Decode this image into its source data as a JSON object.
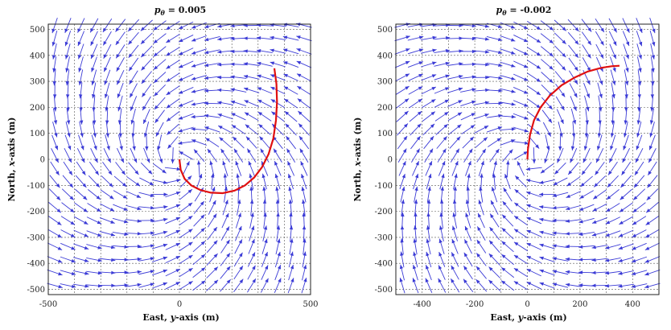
{
  "chart_data": [
    {
      "type": "quiver",
      "title_symbol": "p",
      "title_subscript": "θ",
      "title_value": " = 0.005",
      "xlabel_prefix": "East, ",
      "xlabel_var": "y",
      "xlabel_suffix": "-axis (m)",
      "ylabel_prefix": "North, ",
      "ylabel_var": "x",
      "ylabel_suffix": "-axis (m)",
      "xlim": [
        -500,
        500
      ],
      "ylim": [
        -520,
        520
      ],
      "xticks": [
        -500,
        0,
        500
      ],
      "xtick_labels": [
        "-500",
        "0",
        "500"
      ],
      "xgrid": [
        -500,
        -400,
        -300,
        -200,
        -100,
        0,
        100,
        200,
        300,
        400,
        500
      ],
      "yticks": [
        -500,
        -400,
        -300,
        -200,
        -100,
        0,
        100,
        200,
        300,
        400,
        500
      ],
      "ytick_labels": [
        "-500",
        "-400",
        "-300",
        "-200",
        "-100",
        "0",
        "100",
        "200",
        "300",
        "400",
        "500"
      ],
      "field": {
        "spin": 1,
        "inflow": 0.55,
        "grid_step": 50
      },
      "trajectory": {
        "x": [
          0,
          5,
          20,
          45,
          80,
          120,
          165,
          210,
          250,
          285,
          315,
          340,
          358,
          368,
          372,
          370,
          362
        ],
        "y": [
          0,
          -40,
          -75,
          -100,
          -118,
          -128,
          -130,
          -120,
          -100,
          -70,
          -30,
          20,
          80,
          150,
          220,
          290,
          350
        ]
      },
      "series_colors": {
        "field": "#3b3bd6",
        "trajectory": "#e01010"
      }
    },
    {
      "type": "quiver",
      "title_symbol": "p",
      "title_subscript": "θ",
      "title_value": " = -0.002",
      "xlabel_prefix": "East, ",
      "xlabel_var": "y",
      "xlabel_suffix": "-axis (m)",
      "ylabel_prefix": "North, ",
      "ylabel_var": "x",
      "ylabel_suffix": "-axis (m)",
      "xlim": [
        -500,
        500
      ],
      "ylim": [
        -520,
        520
      ],
      "xticks": [
        -400,
        -200,
        0,
        200,
        400
      ],
      "xtick_labels": [
        "-400",
        "-200",
        "0",
        "200",
        "400"
      ],
      "xgrid": [
        -400,
        -300,
        -200,
        -100,
        0,
        100,
        200,
        300,
        400
      ],
      "yticks": [
        -500,
        -400,
        -300,
        -200,
        -100,
        0,
        100,
        200,
        300,
        400,
        500
      ],
      "ytick_labels": [
        "-500",
        "-400",
        "-300",
        "-200",
        "-100",
        "0",
        "100",
        "200",
        "300",
        "400",
        "500"
      ],
      "field": {
        "spin": -1,
        "inflow": 0.55,
        "grid_step": 50
      },
      "trajectory": {
        "x": [
          0,
          2,
          10,
          25,
          50,
          85,
          130,
          180,
          230,
          280,
          320,
          350
        ],
        "y": [
          0,
          40,
          95,
          150,
          200,
          245,
          285,
          315,
          338,
          352,
          358,
          360
        ]
      },
      "series_colors": {
        "field": "#3b3bd6",
        "trajectory": "#e01010"
      }
    }
  ]
}
